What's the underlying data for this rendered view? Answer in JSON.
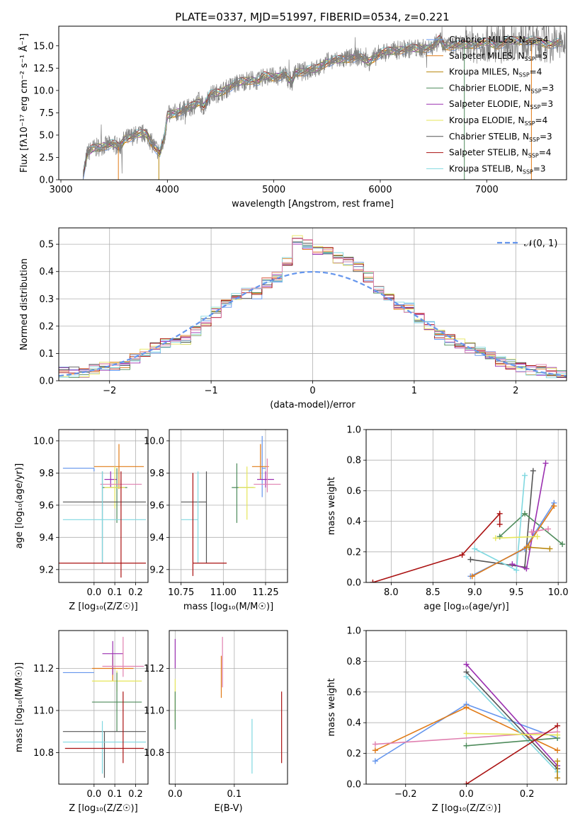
{
  "figure": {
    "title": "PLATE=0337, MJD=51997, FIBERID=0534, z=0.221"
  },
  "colors": {
    "tab_blue": "#6495ED",
    "orange": "#E07B18",
    "olive": "#B8860B",
    "green": "#4E8B5B",
    "purple": "#9B30B0",
    "yellow": "#E6E65A",
    "dark_gray": "#555555",
    "dark_red": "#AA1111",
    "light_blue": "#80D8E0",
    "pink": "#E080B0",
    "gray": "#808080",
    "grid": "#B0B0B0"
  },
  "chart_data": [
    {
      "id": "spectrum",
      "type": "line",
      "title": "PLATE=0337, MJD=51997, FIBERID=0534, z=0.221",
      "xlabel": "wavelength [Angstrom, rest frame]",
      "ylabel": "Flux [fλ10⁻¹⁷ erg cm⁻² s⁻¹ Å⁻¹]",
      "xlim": [
        2980,
        7750
      ],
      "ylim": [
        0,
        17.2
      ],
      "xticks": [
        3000,
        4000,
        5000,
        6000,
        7000
      ],
      "yticks": [
        0.0,
        2.5,
        5.0,
        7.5,
        10.0,
        12.5,
        15.0
      ],
      "legend_position": "top-right",
      "grid": false,
      "data_curve": {
        "x": [
          3200,
          3250,
          3300,
          3400,
          3500,
          3550,
          3600,
          3700,
          3800,
          3860,
          3930,
          3970,
          4000,
          4100,
          4200,
          4300,
          4340,
          4400,
          4500,
          4600,
          4700,
          4800,
          4860,
          4900,
          5000,
          5100,
          5170,
          5200,
          5300,
          5400,
          5500,
          5600,
          5700,
          5800,
          5890,
          6000,
          6100,
          6200,
          6300,
          6400,
          6500,
          6563,
          6600,
          6700,
          6800,
          6900,
          7000,
          7100,
          7200,
          7300,
          7400,
          7500,
          7600,
          7700
        ],
        "y": [
          0,
          3.0,
          3.5,
          3.8,
          4.0,
          3.6,
          4.6,
          5.0,
          5.2,
          4.0,
          3.0,
          4.5,
          7.2,
          7.6,
          8.0,
          8.8,
          8.2,
          9.5,
          9.8,
          10.5,
          11.0,
          11.2,
          11.0,
          11.6,
          11.5,
          11.8,
          10.9,
          12.0,
          12.2,
          12.4,
          13.2,
          13.4,
          13.6,
          13.8,
          13.2,
          14.2,
          14.4,
          14.6,
          14.7,
          14.7,
          14.9,
          15.8,
          15.0,
          15.0,
          15.1,
          15.2,
          15.4,
          15.1,
          15.5,
          15.6,
          15.6,
          15.4,
          15.2,
          15.3
        ]
      },
      "series": [
        {
          "name": "Chabrier MILES, N_SSP=4",
          "color": "#6495ED"
        },
        {
          "name": "Salpeter MILES, N_SSP=5",
          "color": "#E07B18"
        },
        {
          "name": "Kroupa MILES, N_SSP=4",
          "color": "#B8860B"
        },
        {
          "name": "Chabrier ELODIE, N_SSP=3",
          "color": "#4E8B5B"
        },
        {
          "name": "Salpeter ELODIE, N_SSP=3",
          "color": "#9B30B0"
        },
        {
          "name": "Kroupa ELODIE, N_SSP=4",
          "color": "#E6E65A"
        },
        {
          "name": "Chabrier STELIB, N_SSP=3",
          "color": "#555555"
        },
        {
          "name": "Salpeter STELIB, N_SSP=4",
          "color": "#AA1111"
        },
        {
          "name": "Kroupa STELIB, N_SSP=3",
          "color": "#80D8E0"
        }
      ]
    },
    {
      "id": "residuals",
      "type": "line",
      "xlabel": "(data-model)/error",
      "ylabel": "Normed distribution",
      "xlim": [
        -2.5,
        2.5
      ],
      "ylim": [
        0,
        0.56
      ],
      "xticks": [
        -2,
        -1,
        0,
        1,
        2
      ],
      "yticks": [
        0.0,
        0.1,
        0.2,
        0.3,
        0.4,
        0.5
      ],
      "grid": true,
      "legend_position": "top-right",
      "reference_curve": {
        "name": "𝒩(0, 1)",
        "mu": 0,
        "sigma": 1
      },
      "bin_edges": [
        -2.5,
        -2.4,
        -2.3,
        -2.2,
        -2.1,
        -2.0,
        -1.9,
        -1.8,
        -1.7,
        -1.6,
        -1.5,
        -1.4,
        -1.3,
        -1.2,
        -1.1,
        -1.0,
        -0.9,
        -0.8,
        -0.7,
        -0.6,
        -0.5,
        -0.4,
        -0.3,
        -0.2,
        -0.1,
        0.0,
        0.1,
        0.2,
        0.3,
        0.4,
        0.5,
        0.6,
        0.7,
        0.8,
        0.9,
        1.0,
        1.1,
        1.2,
        1.3,
        1.4,
        1.5,
        1.6,
        1.7,
        1.8,
        1.9,
        2.0,
        2.1,
        2.2,
        2.3,
        2.4,
        2.5
      ],
      "histogram_envelope": [
        0.03,
        0.03,
        0.03,
        0.04,
        0.05,
        0.05,
        0.06,
        0.08,
        0.1,
        0.12,
        0.14,
        0.15,
        0.15,
        0.18,
        0.22,
        0.25,
        0.28,
        0.31,
        0.32,
        0.32,
        0.36,
        0.38,
        0.44,
        0.52,
        0.5,
        0.48,
        0.47,
        0.45,
        0.44,
        0.42,
        0.38,
        0.33,
        0.3,
        0.28,
        0.27,
        0.23,
        0.2,
        0.17,
        0.15,
        0.14,
        0.12,
        0.11,
        0.09,
        0.07,
        0.06,
        0.05,
        0.04,
        0.04,
        0.03,
        0.03
      ]
    },
    {
      "id": "z-age",
      "type": "scatter",
      "xlabel": "Z [log₁₀(Z/Z☉)]",
      "ylabel": "age  [log₁₀(age/yr)]",
      "xlim": [
        -0.17,
        0.26
      ],
      "ylim": [
        9.12,
        10.07
      ],
      "xticks": [
        0.0,
        0.1,
        0.2
      ],
      "yticks": [
        9.2,
        9.4,
        9.6,
        9.8,
        10.0
      ],
      "grid": true,
      "points": [
        {
          "color": "#6495ED",
          "x": 0.0,
          "xerr": [
            0.15,
            0.0
          ],
          "y": 9.83,
          "yerr": [
            0.02,
            0.0
          ]
        },
        {
          "color": "#E07B18",
          "x": 0.12,
          "xerr": [
            0.12,
            0.12
          ],
          "y": 9.84,
          "yerr": [
            0.14,
            0.14
          ]
        },
        {
          "color": "#4E8B5B",
          "x": 0.11,
          "xerr": [
            0.07,
            0.05
          ],
          "y": 9.71,
          "yerr": [
            0.22,
            0.12
          ]
        },
        {
          "color": "#9B30B0",
          "x": 0.08,
          "xerr": [
            0.03,
            0.03
          ],
          "y": 9.76,
          "yerr": [
            0.05,
            0.05
          ]
        },
        {
          "color": "#E6E65A",
          "x": 0.1,
          "xerr": [
            0.05,
            0.05
          ],
          "y": 9.71,
          "yerr": [
            0.13,
            0.13
          ]
        },
        {
          "color": "#E080B0",
          "x": 0.13,
          "xerr": [
            0.1,
            0.1
          ],
          "y": 9.73,
          "yerr": [
            0.03,
            0.03
          ]
        },
        {
          "color": "#555555",
          "x": 0.04,
          "xerr": [
            0.19,
            0.21
          ],
          "y": 9.62,
          "yerr": [
            0.38,
            0.19
          ]
        },
        {
          "color": "#80D8E0",
          "x": 0.04,
          "xerr": [
            0.19,
            0.21
          ],
          "y": 9.51,
          "yerr": [
            0.27,
            0.3
          ]
        },
        {
          "color": "#AA1111",
          "x": 0.13,
          "xerr": [
            0.3,
            0.12
          ],
          "y": 9.24,
          "yerr": [
            0.09,
            0.57
          ]
        }
      ]
    },
    {
      "id": "mass-age",
      "type": "scatter",
      "xlabel": "mass [log₁₀(M/M☉)]",
      "ylabel": "",
      "xlim": [
        10.68,
        11.38
      ],
      "ylim": [
        9.12,
        10.07
      ],
      "xticks": [
        10.75,
        11.0,
        11.25
      ],
      "yticks": [
        9.2,
        9.4,
        9.6,
        9.8,
        10.0
      ],
      "grid": true,
      "points": [
        {
          "color": "#6495ED",
          "x": 11.23,
          "xerr": [
            0.0,
            0.02
          ],
          "y": 9.83,
          "yerr": [
            0.18,
            0.2
          ]
        },
        {
          "color": "#E07B18",
          "x": 11.22,
          "xerr": [
            0.05,
            0.05
          ],
          "y": 9.84,
          "yerr": [
            0.08,
            0.14
          ]
        },
        {
          "color": "#9B30B0",
          "x": 11.25,
          "xerr": [
            0.05,
            0.05
          ],
          "y": 9.76,
          "yerr": [
            0.05,
            0.05
          ]
        },
        {
          "color": "#E080B0",
          "x": 11.26,
          "xerr": [
            0.08,
            0.08
          ],
          "y": 9.73,
          "yerr": [
            0.05,
            0.16
          ]
        },
        {
          "color": "#4E8B5B",
          "x": 11.08,
          "xerr": [
            0.03,
            0.1
          ],
          "y": 9.71,
          "yerr": [
            0.22,
            0.15
          ]
        },
        {
          "color": "#E6E65A",
          "x": 11.14,
          "xerr": [
            0.05,
            0.05
          ],
          "y": 9.71,
          "yerr": [
            0.2,
            0.13
          ]
        },
        {
          "color": "#555555",
          "x": 10.9,
          "xerr": [
            0.15,
            0.0
          ],
          "y": 9.62,
          "yerr": [
            0.38,
            0.19
          ]
        },
        {
          "color": "#80D8E0",
          "x": 10.85,
          "xerr": [
            0.1,
            0.0
          ],
          "y": 9.51,
          "yerr": [
            0.27,
            0.3
          ]
        },
        {
          "color": "#AA1111",
          "x": 10.82,
          "xerr": [
            0.0,
            0.2
          ],
          "y": 9.24,
          "yerr": [
            0.08,
            0.56
          ]
        }
      ]
    },
    {
      "id": "age-weight",
      "type": "line",
      "xlabel": "age  [log₁₀(age/yr)]",
      "ylabel": "mass weight",
      "xlim": [
        7.7,
        10.1
      ],
      "ylim": [
        0.0,
        1.0
      ],
      "xticks": [
        8.0,
        8.5,
        9.0,
        9.5,
        10.0
      ],
      "yticks": [
        0.0,
        0.2,
        0.4,
        0.6,
        0.8,
        1.0
      ],
      "grid": true,
      "series": [
        {
          "color": "#AA1111",
          "x": [
            7.78,
            8.85,
            9.3,
            9.3
          ],
          "y": [
            0.0,
            0.18,
            0.45,
            0.38
          ]
        },
        {
          "color": "#555555",
          "x": [
            8.95,
            9.6,
            9.7
          ],
          "y": [
            0.15,
            0.1,
            0.73
          ]
        },
        {
          "color": "#4E8B5B",
          "x": [
            9.3,
            9.6,
            10.05
          ],
          "y": [
            0.3,
            0.45,
            0.25
          ]
        },
        {
          "color": "#80D8E0",
          "x": [
            9.0,
            9.5,
            9.6
          ],
          "y": [
            0.22,
            0.08,
            0.7
          ]
        },
        {
          "color": "#9B30B0",
          "x": [
            9.45,
            9.62,
            9.85
          ],
          "y": [
            0.12,
            0.09,
            0.78
          ]
        },
        {
          "color": "#6495ED",
          "x": [
            8.95,
            9.6,
            9.95
          ],
          "y": [
            0.04,
            0.22,
            0.52
          ]
        },
        {
          "color": "#E07B18",
          "x": [
            8.97,
            9.62,
            9.95
          ],
          "y": [
            0.04,
            0.23,
            0.5
          ]
        },
        {
          "color": "#E080B0",
          "x": [
            9.68,
            9.88
          ],
          "y": [
            0.33,
            0.35
          ]
        },
        {
          "color": "#E6E65A",
          "x": [
            9.25,
            9.75
          ],
          "y": [
            0.29,
            0.3
          ]
        },
        {
          "color": "#B8860B",
          "x": [
            9.65,
            9.9
          ],
          "y": [
            0.23,
            0.22
          ]
        }
      ]
    },
    {
      "id": "z-mass",
      "type": "scatter",
      "xlabel": "Z [log₁₀(Z/Z☉)]",
      "ylabel": "mass [log₁₀(M/M☉)]",
      "xlim": [
        -0.17,
        0.26
      ],
      "ylim": [
        10.65,
        11.38
      ],
      "xticks": [
        0.0,
        0.1,
        0.2
      ],
      "yticks": [
        10.8,
        11.0,
        11.2
      ],
      "grid": true,
      "points": [
        {
          "color": "#6495ED",
          "x": 0.0,
          "xerr": [
            0.15,
            0.0
          ],
          "y": 11.18,
          "yerr": [
            0.0,
            0.0
          ]
        },
        {
          "color": "#E07B18",
          "x": 0.09,
          "xerr": [
            0.1,
            0.1
          ],
          "y": 11.2,
          "yerr": [
            0.06,
            0.06
          ]
        },
        {
          "color": "#9B30B0",
          "x": 0.09,
          "xerr": [
            0.05,
            0.05
          ],
          "y": 11.27,
          "yerr": [
            0.1,
            0.06
          ]
        },
        {
          "color": "#E080B0",
          "x": 0.14,
          "xerr": [
            0.1,
            0.1
          ],
          "y": 11.21,
          "yerr": [
            0.05,
            0.14
          ]
        },
        {
          "color": "#E6E65A",
          "x": 0.11,
          "xerr": [
            0.12,
            0.12
          ],
          "y": 11.14,
          "yerr": [
            0.05,
            0.05
          ]
        },
        {
          "color": "#4E8B5B",
          "x": 0.11,
          "xerr": [
            0.12,
            0.12
          ],
          "y": 11.04,
          "yerr": [
            0.14,
            0.14
          ]
        },
        {
          "color": "#555555",
          "x": 0.05,
          "xerr": [
            0.2,
            0.2
          ],
          "y": 10.9,
          "yerr": [
            0.22,
            0.0
          ]
        },
        {
          "color": "#80D8E0",
          "x": 0.04,
          "xerr": [
            0.19,
            0.21
          ],
          "y": 10.85,
          "yerr": [
            0.15,
            0.1
          ]
        },
        {
          "color": "#AA1111",
          "x": 0.14,
          "xerr": [
            0.28,
            0.1
          ],
          "y": 10.82,
          "yerr": [
            0.07,
            0.27
          ]
        }
      ]
    },
    {
      "id": "ebv-mass",
      "type": "scatter",
      "xlabel": "E(B-V)",
      "ylabel": "",
      "xlim": [
        -0.01,
        0.19
      ],
      "ylim": [
        10.65,
        11.38
      ],
      "xticks": [
        0.0,
        0.1
      ],
      "yticks": [
        10.8,
        11.0,
        11.2
      ],
      "grid": true,
      "points": [
        {
          "color": "#9B30B0",
          "x": 0.0,
          "y": 11.27,
          "yerr": [
            0.07,
            0.07
          ]
        },
        {
          "color": "#E6E65A",
          "x": 0.0,
          "y": 11.05,
          "yerr": [
            0.1,
            0.1
          ]
        },
        {
          "color": "#4E8B5B",
          "x": 0.0,
          "y": 11.0,
          "yerr": [
            0.09,
            0.09
          ]
        },
        {
          "color": "#E080B0",
          "x": 0.08,
          "y": 11.23,
          "yerr": [
            0.12,
            0.12
          ]
        },
        {
          "color": "#E07B18",
          "x": 0.078,
          "y": 11.16,
          "yerr": [
            0.1,
            0.1
          ]
        },
        {
          "color": "#80D8E0",
          "x": 0.13,
          "y": 10.84,
          "yerr": [
            0.14,
            0.12
          ]
        },
        {
          "color": "#AA1111",
          "x": 0.18,
          "y": 10.92,
          "yerr": [
            0.17,
            0.17
          ]
        }
      ]
    },
    {
      "id": "z-weight",
      "type": "line",
      "xlabel": "Z [log₁₀(Z/Z☉)]",
      "ylabel": "mass weight",
      "xlim": [
        -0.33,
        0.33
      ],
      "ylim": [
        0.0,
        1.0
      ],
      "xticks": [
        -0.2,
        0.0,
        0.2
      ],
      "yticks": [
        0.0,
        0.2,
        0.4,
        0.6,
        0.8,
        1.0
      ],
      "grid": true,
      "series": [
        {
          "color": "#6495ED",
          "x": [
            -0.3,
            0.0,
            0.3
          ],
          "y": [
            0.15,
            0.52,
            0.3
          ]
        },
        {
          "color": "#E07B18",
          "x": [
            -0.3,
            0.0,
            0.3
          ],
          "y": [
            0.22,
            0.5,
            0.22
          ]
        },
        {
          "color": "#E080B0",
          "x": [
            -0.3,
            0.3
          ],
          "y": [
            0.26,
            0.34
          ]
        },
        {
          "color": "#9B30B0",
          "x": [
            0.0,
            0.3
          ],
          "y": [
            0.78,
            0.12
          ]
        },
        {
          "color": "#555555",
          "x": [
            0.0,
            0.3
          ],
          "y": [
            0.73,
            0.1
          ]
        },
        {
          "color": "#80D8E0",
          "x": [
            0.0,
            0.3
          ],
          "y": [
            0.7,
            0.08
          ]
        },
        {
          "color": "#4E8B5B",
          "x": [
            0.0,
            0.3
          ],
          "y": [
            0.25,
            0.3
          ]
        },
        {
          "color": "#E6E65A",
          "x": [
            0.0,
            0.3
          ],
          "y": [
            0.33,
            0.32
          ]
        },
        {
          "color": "#AA1111",
          "x": [
            0.0,
            0.3
          ],
          "y": [
            0.0,
            0.38
          ]
        },
        {
          "color": "#B8860B",
          "x": [
            0.3,
            0.3
          ],
          "y": [
            0.04,
            0.15
          ]
        }
      ]
    }
  ]
}
